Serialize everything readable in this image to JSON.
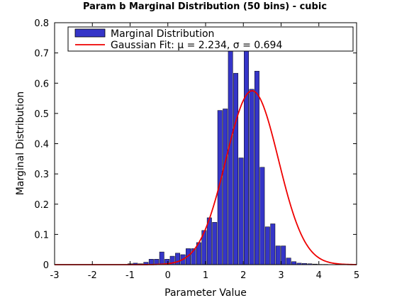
{
  "chart_data": {
    "type": "bar",
    "title": "Param b Marginal Distribution (50 bins) - cubic",
    "xlabel": "Parameter Value",
    "ylabel": "Marginal Distribution",
    "xlim": [
      -3,
      5
    ],
    "ylim": [
      0,
      0.8
    ],
    "xticks": [
      "-3",
      "-2",
      "-1",
      "0",
      "1",
      "2",
      "3",
      "4",
      "5"
    ],
    "yticks": [
      "0",
      "0.1",
      "0.2",
      "0.3",
      "0.4",
      "0.5",
      "0.6",
      "0.7",
      "0.8"
    ],
    "grid": false,
    "legend_position": "top",
    "bar_color": "#3535c8",
    "fit_color": "#ee0000",
    "bins": {
      "x": [
        -1.0,
        -0.86,
        -0.72,
        -0.58,
        -0.44,
        -0.3,
        -0.16,
        -0.02,
        0.12,
        0.26,
        0.4,
        0.54,
        0.68,
        0.82,
        0.96,
        1.1,
        1.24,
        1.38,
        1.52,
        1.66,
        1.8,
        1.94,
        2.08,
        2.22,
        2.36,
        2.5,
        2.64,
        2.78,
        2.92,
        3.06,
        3.2,
        3.34,
        3.48,
        3.62,
        3.76,
        3.9,
        4.04,
        4.18
      ],
      "values": [
        0.003,
        0.005,
        0.003,
        0.008,
        0.018,
        0.018,
        0.042,
        0.018,
        0.028,
        0.038,
        0.033,
        0.053,
        0.053,
        0.073,
        0.113,
        0.155,
        0.14,
        0.51,
        0.515,
        0.72,
        0.633,
        0.353,
        0.725,
        0.58,
        0.64,
        0.322,
        0.125,
        0.135,
        0.062,
        0.062,
        0.022,
        0.01,
        0.005,
        0.004,
        0.003,
        0.002,
        0.001,
        0.001
      ],
      "width": 0.14
    },
    "series": [
      {
        "name": "Marginal Distribution",
        "kind": "bar"
      },
      {
        "name": "Gaussian Fit: μ = 2.234, σ  = 0.694",
        "kind": "line",
        "mu": 2.234,
        "sigma": 0.694,
        "amplitude": 0.575
      }
    ]
  }
}
